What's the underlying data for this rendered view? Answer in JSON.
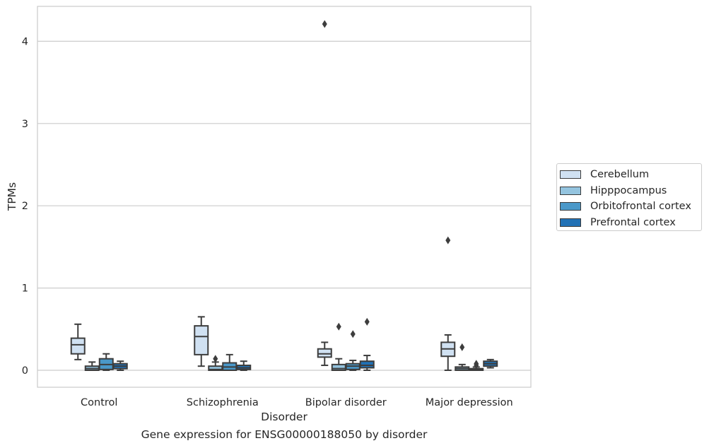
{
  "chart_data": {
    "type": "boxplot",
    "xlabel": "Disorder",
    "ylabel": "TPMs",
    "caption": "Gene expression for ENSG00000188050 by disorder",
    "ylim": [
      -0.2,
      4.42
    ],
    "yticks": [
      0,
      1,
      2,
      3,
      4
    ],
    "grid": "horizontal",
    "legend_position": "right",
    "categories": [
      "Control",
      "Schizophrenia",
      "Bipolar disorder",
      "Major depression"
    ],
    "series": [
      {
        "name": "Cerebellum",
        "color": "#d0e1f2",
        "boxes": [
          {
            "whislo": 0.13,
            "q1": 0.2,
            "med": 0.31,
            "q3": 0.39,
            "whishi": 0.56,
            "fliers": []
          },
          {
            "whislo": 0.05,
            "q1": 0.19,
            "med": 0.41,
            "q3": 0.54,
            "whishi": 0.65,
            "fliers": []
          },
          {
            "whislo": 0.06,
            "q1": 0.16,
            "med": 0.2,
            "q3": 0.26,
            "whishi": 0.34,
            "fliers": [
              4.21
            ]
          },
          {
            "whislo": 0.0,
            "q1": 0.17,
            "med": 0.26,
            "q3": 0.34,
            "whishi": 0.43,
            "fliers": [
              1.58
            ]
          }
        ]
      },
      {
        "name": "Hipppocampus",
        "color": "#94c4df",
        "boxes": [
          {
            "whislo": 0.0,
            "q1": 0.0,
            "med": 0.02,
            "q3": 0.05,
            "whishi": 0.1,
            "fliers": []
          },
          {
            "whislo": 0.0,
            "q1": 0.0,
            "med": 0.01,
            "q3": 0.05,
            "whishi": 0.1,
            "fliers": [
              0.14
            ]
          },
          {
            "whislo": 0.0,
            "q1": 0.0,
            "med": 0.02,
            "q3": 0.07,
            "whishi": 0.14,
            "fliers": [
              0.53
            ]
          },
          {
            "whislo": 0.0,
            "q1": 0.0,
            "med": 0.02,
            "q3": 0.04,
            "whishi": 0.07,
            "fliers": [
              0.28
            ]
          }
        ]
      },
      {
        "name": "Orbitofrontal cortex",
        "color": "#4a98c9",
        "boxes": [
          {
            "whislo": 0.0,
            "q1": 0.01,
            "med": 0.07,
            "q3": 0.14,
            "whishi": 0.2,
            "fliers": []
          },
          {
            "whislo": 0.0,
            "q1": 0.0,
            "med": 0.04,
            "q3": 0.09,
            "whishi": 0.19,
            "fliers": []
          },
          {
            "whislo": 0.0,
            "q1": 0.01,
            "med": 0.05,
            "q3": 0.08,
            "whishi": 0.12,
            "fliers": [
              0.44
            ]
          },
          {
            "whislo": 0.0,
            "q1": 0.0,
            "med": 0.01,
            "q3": 0.02,
            "whishi": 0.04,
            "fliers": [
              0.08,
              0.06
            ]
          }
        ]
      },
      {
        "name": "Prefrontal cortex",
        "color": "#2171b5",
        "boxes": [
          {
            "whislo": 0.0,
            "q1": 0.02,
            "med": 0.05,
            "q3": 0.08,
            "whishi": 0.11,
            "fliers": []
          },
          {
            "whislo": 0.0,
            "q1": 0.01,
            "med": 0.03,
            "q3": 0.06,
            "whishi": 0.11,
            "fliers": []
          },
          {
            "whislo": 0.0,
            "q1": 0.03,
            "med": 0.06,
            "q3": 0.11,
            "whishi": 0.18,
            "fliers": [
              0.59
            ]
          },
          {
            "whislo": 0.03,
            "q1": 0.05,
            "med": 0.08,
            "q3": 0.11,
            "whishi": 0.13,
            "fliers": []
          }
        ]
      }
    ]
  }
}
